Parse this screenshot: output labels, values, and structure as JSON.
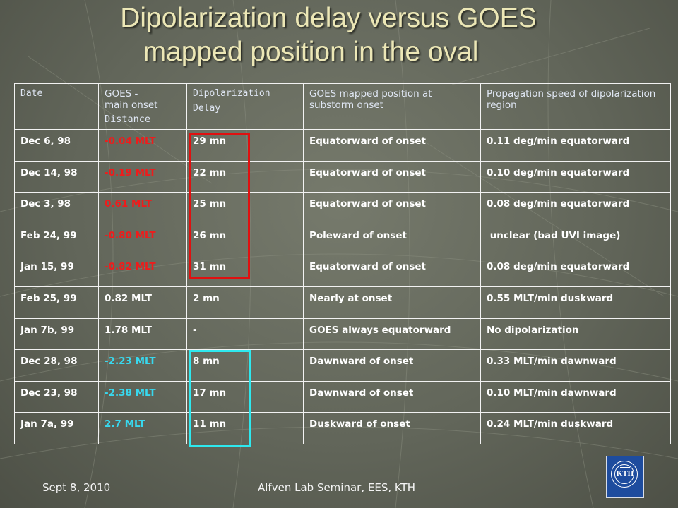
{
  "slide": {
    "title_line1": "Dipolarization delay versus GOES",
    "title_line2": "mapped position in the oval"
  },
  "table": {
    "headers": {
      "date": "Date",
      "distance_l1": "GOES -",
      "distance_l2": "main onset",
      "distance_l3": "Distance",
      "delay_l1": "Dipolarization",
      "delay_l2": "Delay",
      "position": "GOES mapped position at substorm onset",
      "speed": "Propagation speed of dipolarization region"
    },
    "rows": [
      {
        "date": "Dec 6, 98",
        "distance": "-0.04 MLT",
        "delay": "29 mn",
        "position": "Equatorward of onset",
        "speed": "0.11 deg/min equatorward"
      },
      {
        "date": "Dec 14, 98",
        "distance": "-0.19 MLT",
        "delay": "22 mn",
        "position": "Equatorward of onset",
        "speed": "0.10 deg/min equatorward"
      },
      {
        "date": "Dec 3, 98",
        "distance": "0.61 MLT",
        "delay": "25 mn",
        "position": "Equatorward of onset",
        "speed": "0.08 deg/min equatorward"
      },
      {
        "date": "Feb 24, 99",
        "distance": "-0.80 MLT",
        "delay": "26 mn",
        "position": "Poleward of onset",
        "speed": " unclear (bad UVI image)"
      },
      {
        "date": "Jan 15, 99",
        "distance": "-0.82 MLT",
        "delay": "31 mn",
        "position": "Equatorward of onset",
        "speed": "0.08 deg/min equatorward"
      },
      {
        "date": "Feb 25, 99",
        "distance": "0.82 MLT",
        "delay": "2 mn",
        "position": "Nearly at onset",
        "speed": "0.55 MLT/min duskward"
      },
      {
        "date": "Jan 7b, 99",
        "distance": "1.78 MLT",
        "delay": "-",
        "position": "GOES always equatorward",
        "speed": "No dipolarization"
      },
      {
        "date": "Dec 28, 98",
        "distance": "-2.23 MLT",
        "delay": "8 mn",
        "position": "Dawnward of onset",
        "speed": "0.33 MLT/min dawnward"
      },
      {
        "date": "Dec 23, 98",
        "distance": "-2.38 MLT",
        "delay": "17 mn",
        "position": "Dawnward of onset",
        "speed": "0.10 MLT/min dawnward"
      },
      {
        "date": "Jan 7a, 99",
        "distance": "2.7 MLT",
        "delay": "11 mn",
        "position": "Duskward of onset",
        "speed": "0.24 MLT/min duskward"
      }
    ],
    "highlight_colors": {
      "red_group": "#ee1c1c",
      "cyan_group": "#38d8ee",
      "red_box": "#e01010",
      "cyan_box": "#2ee8ee"
    }
  },
  "footer": {
    "date": "Sept 8, 2010",
    "event": "Alfven Lab Seminar, EES, KTH",
    "logo_text": "KTH",
    "logo_icon": "kth-seal-icon"
  }
}
